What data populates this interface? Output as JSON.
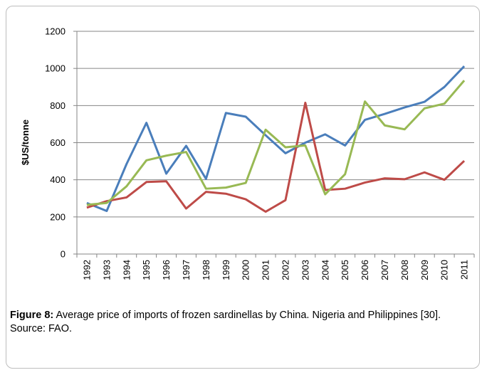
{
  "chart_data": {
    "type": "line",
    "y_label": "$US/tonne",
    "categories": [
      "1992",
      "1993",
      "1994",
      "1995",
      "1996",
      "1997",
      "1998",
      "1999",
      "2000",
      "2001",
      "2002",
      "2003",
      "2004",
      "2005",
      "2006",
      "2007",
      "2008",
      "2009",
      "2010",
      "2011"
    ],
    "series": [
      {
        "name": "China",
        "color": "#4a7ebb",
        "values": [
          275,
          232,
          485,
          707,
          433,
          583,
          405,
          760,
          740,
          640,
          543,
          600,
          645,
          585,
          723,
          755,
          790,
          820,
          900,
          1012
        ]
      },
      {
        "name": "Philippines",
        "color": "#be4b48",
        "values": [
          250,
          285,
          305,
          388,
          392,
          245,
          335,
          325,
          295,
          228,
          290,
          815,
          345,
          352,
          385,
          408,
          403,
          440,
          400,
          502
        ]
      },
      {
        "name": "Nigeria",
        "color": "#98b954",
        "values": [
          265,
          275,
          365,
          505,
          530,
          550,
          352,
          358,
          383,
          670,
          575,
          585,
          322,
          430,
          822,
          693,
          672,
          785,
          810,
          935
        ]
      }
    ],
    "ylim": [
      0,
      1200
    ],
    "yticks": [
      0,
      200,
      400,
      600,
      800,
      1000,
      1200
    ],
    "grid": true,
    "legend": "bottom"
  },
  "caption": {
    "label": "Figure 8:",
    "text": "Average price of imports of frozen sardinellas by China. Nigeria and Philippines [30].",
    "source": "Source: FAO."
  }
}
